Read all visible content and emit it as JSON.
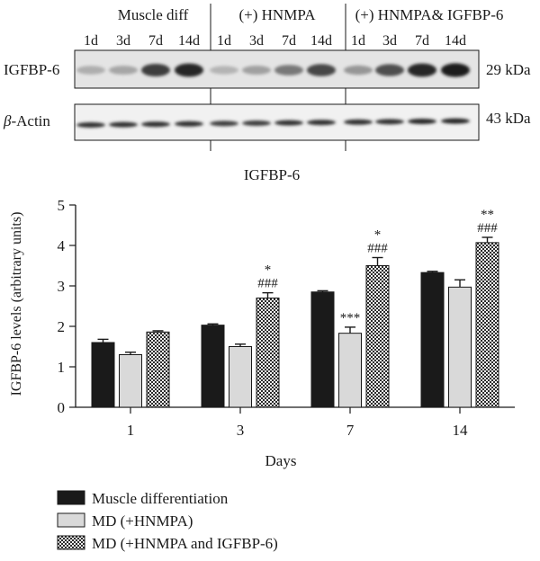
{
  "blot": {
    "group_labels": [
      "Muscle diff",
      "(+) HNMPA",
      "(+) HNMPA& IGFBP-6"
    ],
    "lane_labels": [
      "1d",
      "3d",
      "7d",
      "14d",
      "1d",
      "3d",
      "7d",
      "14d",
      "1d",
      "3d",
      "7d",
      "14d"
    ],
    "rows": [
      {
        "label_prefix": "",
        "label_main": "IGFBP-6",
        "size": "29 kDa",
        "intensities": [
          0.18,
          0.22,
          0.75,
          0.85,
          0.15,
          0.25,
          0.45,
          0.7,
          0.3,
          0.65,
          0.85,
          0.9
        ]
      },
      {
        "label_prefix": "β",
        "label_main": "-Actin",
        "size": "43 kDa",
        "intensities": [
          0.8,
          0.8,
          0.8,
          0.8,
          0.75,
          0.75,
          0.8,
          0.8,
          0.8,
          0.8,
          0.85,
          0.85
        ]
      }
    ]
  },
  "chart_data": {
    "type": "bar",
    "title": "IGFBP-6",
    "xlabel": "Days",
    "ylabel": "IGFBP-6 levels (arbitrary units)",
    "ylim": [
      0,
      5
    ],
    "yticks": [
      "0",
      "1",
      "2",
      "3",
      "4",
      "5"
    ],
    "categories": [
      "1",
      "3",
      "7",
      "14"
    ],
    "series": [
      {
        "name": "Muscle differentiation",
        "fill": "#1a1a1a",
        "values": [
          1.6,
          2.03,
          2.85,
          3.33
        ],
        "errors": [
          0.08,
          0.03,
          0.03,
          0.03
        ],
        "annotations": [
          [],
          [],
          [],
          []
        ]
      },
      {
        "name": "MD (+HNMPA)",
        "fill": "#d9d9d9",
        "values": [
          1.3,
          1.5,
          1.83,
          2.97
        ],
        "errors": [
          0.06,
          0.06,
          0.15,
          0.18
        ],
        "annotations": [
          [],
          [],
          [
            "***"
          ],
          []
        ]
      },
      {
        "name": "MD (+HNMPA and IGFBP-6)",
        "fill": "checker",
        "values": [
          1.86,
          2.7,
          3.5,
          4.07
        ],
        "errors": [
          0.03,
          0.13,
          0.2,
          0.13
        ],
        "annotations": [
          [],
          [
            "*",
            "###"
          ],
          [
            "*",
            "###"
          ],
          [
            "**",
            "###"
          ]
        ]
      }
    ],
    "legend_position": "bottom-left"
  }
}
